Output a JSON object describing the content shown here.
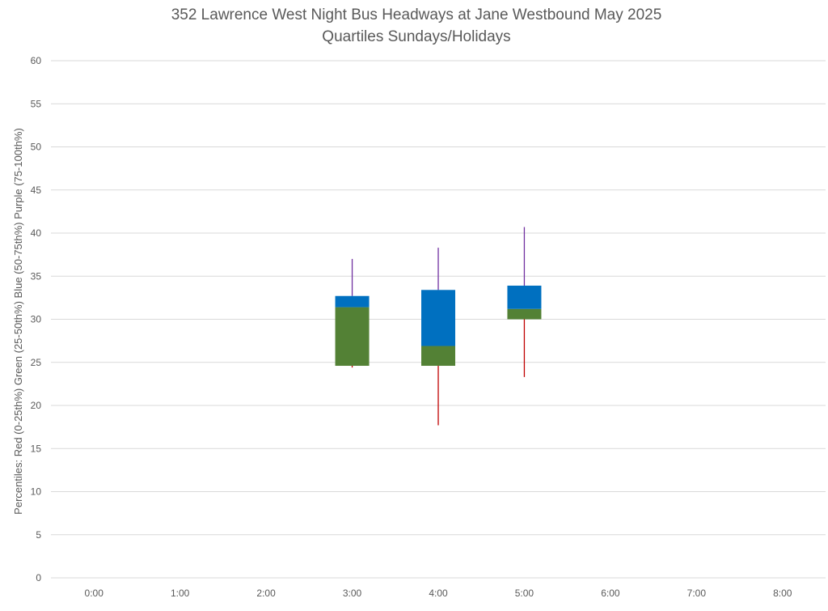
{
  "chart_data": {
    "type": "box",
    "title": "352 Lawrence West Night Bus Headways at Jane Westbound May 2025",
    "subtitle": "Quartiles Sundays/Holidays",
    "xlabel": "",
    "ylabel": "Percentiles:  Red (0-25th%)  Green (25-50th%)  Blue (50-75th%)  Purple (75-100th%)",
    "ylim": [
      0,
      60
    ],
    "ytick_step": 5,
    "yticks": [
      "0",
      "5",
      "10",
      "15",
      "20",
      "25",
      "30",
      "35",
      "40",
      "45",
      "50",
      "55",
      "60"
    ],
    "grid": true,
    "categories": [
      "0:00",
      "1:00",
      "2:00",
      "3:00",
      "4:00",
      "5:00",
      "6:00",
      "7:00",
      "8:00"
    ],
    "series": [
      {
        "category": "3:00",
        "min": 24.4,
        "q1": 24.6,
        "median": 31.4,
        "q3": 32.7,
        "max": 37.0
      },
      {
        "category": "4:00",
        "min": 17.7,
        "q1": 24.6,
        "median": 26.9,
        "q3": 33.4,
        "max": 38.3
      },
      {
        "category": "5:00",
        "min": 23.3,
        "q1": 30.0,
        "median": 31.2,
        "q3": 33.9,
        "max": 40.7
      }
    ],
    "colors": {
      "lower_whisker": "#c00000",
      "lower_box": "#538135",
      "upper_box": "#0070c0",
      "upper_whisker": "#7030a0",
      "grid": "#d9d9d9",
      "text": "#595959"
    }
  }
}
